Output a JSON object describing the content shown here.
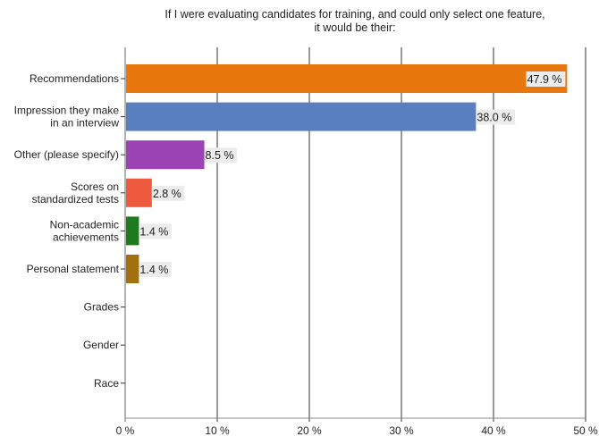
{
  "chart_data": {
    "type": "bar",
    "orientation": "horizontal",
    "title": [
      "If  I were evaluating candidates for training, and could only select one feature,",
      "it would be their:"
    ],
    "categories": [
      [
        "Recommendations"
      ],
      [
        "Impression they make",
        "in an interview"
      ],
      [
        "Other (please specify)"
      ],
      [
        "Scores on",
        "standardized tests"
      ],
      [
        "Non-academic",
        "achievements"
      ],
      [
        "Personal statement"
      ],
      [
        "Grades"
      ],
      [
        "Gender"
      ],
      [
        "Race"
      ]
    ],
    "values": [
      47.9,
      38.0,
      8.5,
      2.8,
      1.4,
      1.4,
      0,
      0,
      0
    ],
    "data_labels": [
      "47.9 %",
      "38.0 %",
      "8.5 %",
      "2.8 %",
      "1.4 %",
      "1.4 %",
      null,
      null,
      null
    ],
    "colors": [
      "#E8770E",
      "#5A7FC0",
      "#9B43B5",
      "#EE5A3E",
      "#1E7A1E",
      "#A3700F",
      "#999999",
      "#999999",
      "#999999"
    ],
    "xlim": [
      0,
      50
    ],
    "xticks": [
      0,
      10,
      20,
      30,
      40,
      50
    ],
    "xtick_labels": [
      "0 %",
      "10 %",
      "20 %",
      "30 %",
      "40 %",
      "50 %"
    ],
    "xlabel": "",
    "ylabel": "",
    "grid": "vertical"
  }
}
